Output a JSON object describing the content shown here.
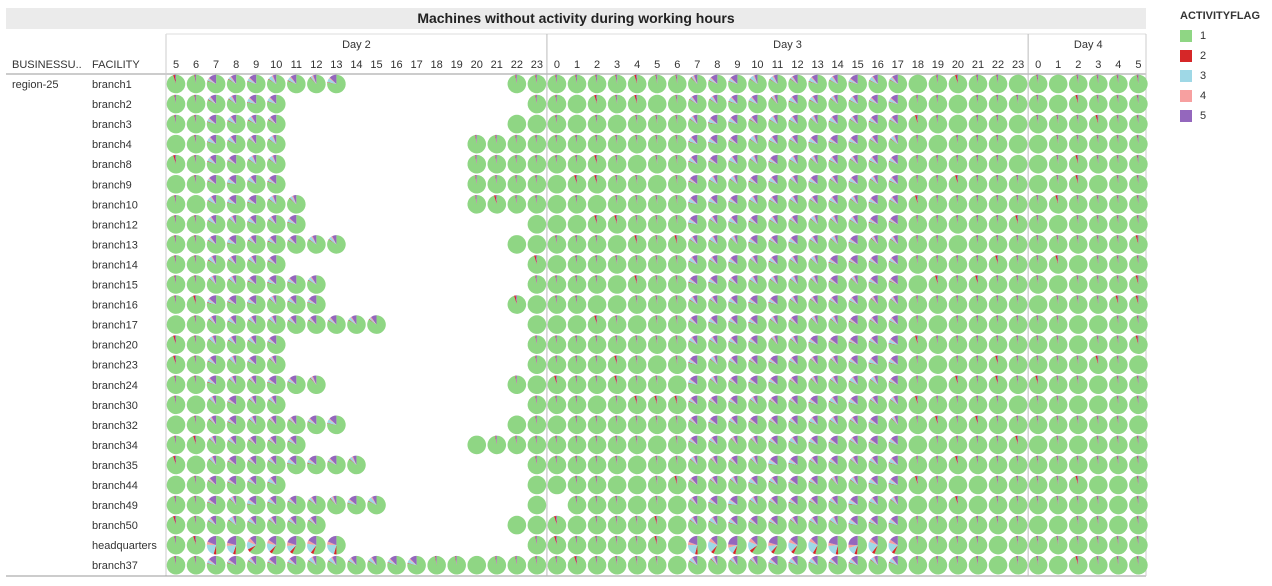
{
  "title": "Machines without activity during working hours",
  "legend": {
    "title": "ACTIVITYFLAG",
    "items": [
      {
        "label": "1",
        "color": "#8fd684"
      },
      {
        "label": "2",
        "color": "#d62728"
      },
      {
        "label": "3",
        "color": "#9fd8e6"
      },
      {
        "label": "4",
        "color": "#f7a0a0"
      },
      {
        "label": "5",
        "color": "#9467bd"
      }
    ]
  },
  "headers": {
    "business_unit": "BUSINESSU..",
    "facility": "FACILITY"
  },
  "chart_data": {
    "type": "pie-grid",
    "title": "Machines without activity during working hours",
    "business_unit": "region-25",
    "days": [
      {
        "label": "Day 2",
        "hours": [
          "5",
          "6",
          "7",
          "8",
          "9",
          "10",
          "11",
          "12",
          "13",
          "14",
          "15",
          "16",
          "17",
          "18",
          "19",
          "20",
          "21",
          "22",
          "23"
        ]
      },
      {
        "label": "Day 3",
        "hours": [
          "0",
          "1",
          "2",
          "3",
          "4",
          "5",
          "6",
          "7",
          "8",
          "9",
          "10",
          "11",
          "12",
          "13",
          "14",
          "15",
          "16",
          "17",
          "18",
          "19",
          "20",
          "21",
          "22",
          "23"
        ]
      },
      {
        "label": "Day 4",
        "hours": [
          "0",
          "1",
          "2",
          "3",
          "4",
          "5"
        ]
      }
    ],
    "facilities": [
      {
        "name": "branch1",
        "day2_present": [
          5,
          6,
          7,
          8,
          9,
          10,
          11,
          12,
          13,
          22,
          23
        ]
      },
      {
        "name": "branch2",
        "day2_present": [
          5,
          6,
          7,
          8,
          9,
          10,
          23
        ]
      },
      {
        "name": "branch3",
        "day2_present": [
          5,
          6,
          7,
          8,
          9,
          10,
          22,
          23
        ]
      },
      {
        "name": "branch4",
        "day2_present": [
          5,
          6,
          7,
          8,
          9,
          10,
          20,
          21,
          22,
          23
        ]
      },
      {
        "name": "branch8",
        "day2_present": [
          5,
          6,
          7,
          8,
          9,
          10,
          20,
          21,
          22,
          23
        ]
      },
      {
        "name": "branch9",
        "day2_present": [
          5,
          6,
          7,
          8,
          9,
          10,
          20,
          21,
          22,
          23
        ]
      },
      {
        "name": "branch10",
        "day2_present": [
          5,
          6,
          7,
          8,
          9,
          10,
          11,
          20,
          21,
          22,
          23
        ]
      },
      {
        "name": "branch12",
        "day2_present": [
          5,
          6,
          7,
          8,
          9,
          10,
          11,
          23
        ]
      },
      {
        "name": "branch13",
        "day2_present": [
          5,
          6,
          7,
          8,
          9,
          10,
          11,
          12,
          13,
          22,
          23
        ]
      },
      {
        "name": "branch14",
        "day2_present": [
          5,
          6,
          7,
          8,
          9,
          10,
          23
        ]
      },
      {
        "name": "branch15",
        "day2_present": [
          5,
          6,
          7,
          8,
          9,
          10,
          11,
          12,
          23
        ]
      },
      {
        "name": "branch16",
        "day2_present": [
          5,
          6,
          7,
          8,
          9,
          10,
          11,
          12,
          22,
          23
        ]
      },
      {
        "name": "branch17",
        "day2_present": [
          5,
          6,
          7,
          8,
          9,
          10,
          11,
          12,
          13,
          14,
          15,
          23
        ]
      },
      {
        "name": "branch20",
        "day2_present": [
          5,
          6,
          7,
          8,
          9,
          10,
          23
        ]
      },
      {
        "name": "branch23",
        "day2_present": [
          5,
          6,
          7,
          8,
          9,
          10,
          23
        ]
      },
      {
        "name": "branch24",
        "day2_present": [
          5,
          6,
          7,
          8,
          9,
          10,
          11,
          12,
          22,
          23
        ]
      },
      {
        "name": "branch30",
        "day2_present": [
          5,
          6,
          7,
          8,
          9,
          10,
          23
        ]
      },
      {
        "name": "branch32",
        "day2_present": [
          5,
          6,
          7,
          8,
          9,
          10,
          11,
          12,
          13,
          22,
          23
        ]
      },
      {
        "name": "branch34",
        "day2_present": [
          5,
          6,
          7,
          8,
          9,
          10,
          11,
          20,
          21,
          22,
          23
        ]
      },
      {
        "name": "branch35",
        "day2_present": [
          5,
          6,
          7,
          8,
          9,
          10,
          11,
          12,
          13,
          14,
          23
        ]
      },
      {
        "name": "branch44",
        "day2_present": [
          5,
          6,
          7,
          8,
          9,
          10,
          23
        ]
      },
      {
        "name": "branch49",
        "day2_present": [
          5,
          6,
          7,
          8,
          9,
          10,
          11,
          12,
          13,
          14,
          15,
          23
        ]
      },
      {
        "name": "branch50",
        "day2_present": [
          5,
          6,
          7,
          8,
          9,
          10,
          11,
          12,
          22,
          23
        ]
      },
      {
        "name": "headquarters",
        "day2_present": [
          5,
          6,
          7,
          8,
          9,
          10,
          11,
          12,
          13,
          23
        ]
      },
      {
        "name": "branch37",
        "day2_present": [
          5,
          6,
          7,
          8,
          9,
          10,
          11,
          12,
          13,
          14,
          15,
          16,
          17,
          18,
          19,
          20,
          21,
          22,
          23
        ]
      }
    ],
    "day3_missing": {
      "branch49": [
        0
      ],
      "branch37": []
    },
    "slice_colors": {
      "1": "#8fd684",
      "2": "#d62728",
      "3": "#9fd8e6",
      "4": "#f7a0a0",
      "5": "#9467bd"
    },
    "typical_shares": {
      "off_hours": {
        "1": 0.97,
        "5": 0.02,
        "2": 0.01
      },
      "work_hours": {
        "1": 0.82,
        "5": 0.1,
        "3": 0.05,
        "4": 0.02,
        "2": 0.01
      },
      "headquarters_work_hours": {
        "1": 0.55,
        "5": 0.18,
        "3": 0.16,
        "4": 0.06,
        "2": 0.05
      }
    }
  }
}
